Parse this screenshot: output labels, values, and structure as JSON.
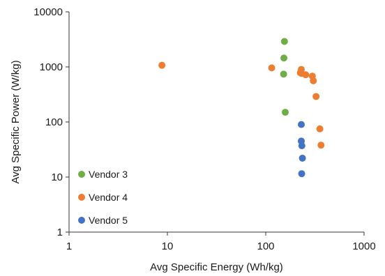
{
  "chart_data": {
    "type": "scatter",
    "xlabel": "Avg Specific Energy (Wh/kg)",
    "ylabel": "Avg Specific Power (W/kg)",
    "xscale": "log",
    "yscale": "log",
    "xlim": [
      1,
      1000
    ],
    "ylim": [
      1,
      10000
    ],
    "xticks": [
      "1",
      "10",
      "100",
      "1000"
    ],
    "yticks": [
      "1",
      "10",
      "100",
      "1000",
      "10000"
    ],
    "grid": false,
    "legend_position": "bottom-left",
    "series": [
      {
        "name": "Vendor 3",
        "color": "#70ad47",
        "points": [
          [
            155,
            2900
          ],
          [
            153,
            1450
          ],
          [
            152,
            740
          ],
          [
            158,
            150
          ]
        ]
      },
      {
        "name": "Vendor 4",
        "color": "#ed7d31",
        "points": [
          [
            8.8,
            1070
          ],
          [
            115,
            960
          ],
          [
            230,
            900
          ],
          [
            225,
            780
          ],
          [
            232,
            760
          ],
          [
            255,
            720
          ],
          [
            298,
            680
          ],
          [
            305,
            560
          ],
          [
            325,
            290
          ],
          [
            355,
            75
          ],
          [
            365,
            38
          ]
        ]
      },
      {
        "name": "Vendor 5",
        "color": "#4472c4",
        "points": [
          [
            230,
            90
          ],
          [
            230,
            45
          ],
          [
            233,
            37
          ],
          [
            236,
            22
          ],
          [
            232,
            11.5
          ]
        ]
      }
    ]
  }
}
